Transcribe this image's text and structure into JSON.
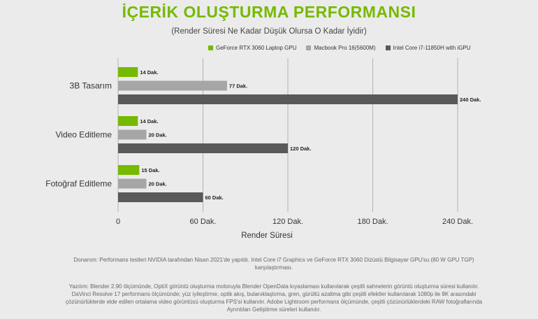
{
  "title": "İÇERİK OLUŞTURMA PERFORMANSI",
  "subtitle": "(Render Süresi Ne Kadar Düşük Olursa O Kadar İyidir)",
  "colors": {
    "green": "#76b900",
    "light_gray": "#a6a6a6",
    "dark_gray": "#595959",
    "title": "#76b900"
  },
  "chart_data": {
    "type": "bar",
    "orientation": "horizontal",
    "title": "İÇERİK OLUŞTURMA PERFORMANSI",
    "subtitle": "(Render Süresi Ne Kadar Düşük Olursa O Kadar İyidir)",
    "xlabel": "Render Süresi",
    "ylabel": "",
    "xlim": [
      0,
      240
    ],
    "xticks": [
      0,
      60,
      120,
      180,
      240
    ],
    "xtick_labels": [
      "0",
      "60 Dak.",
      "120 Dak.",
      "180 Dak.",
      "240 Dak."
    ],
    "grid": "vertical",
    "legend_position": "top-right",
    "categories": [
      "3B Tasarım",
      "Video Editleme",
      "Fotoğraf Editleme"
    ],
    "series": [
      {
        "name": "GeForce RTX 3060 Laptop GPU",
        "color": "#76b900",
        "values": [
          14,
          14,
          15
        ],
        "labels": [
          "14 Dak.",
          "14 Dak.",
          "15 Dak."
        ]
      },
      {
        "name": "Macbook Pro 16(5600M)",
        "color": "#a6a6a6",
        "values": [
          77,
          20,
          20
        ],
        "labels": [
          "77 Dak.",
          "20 Dak.",
          "20 Dak."
        ]
      },
      {
        "name": "Intel Core i7-11850H with iGPU",
        "color": "#595959",
        "values": [
          240,
          120,
          60
        ],
        "labels": [
          "240 Dak.",
          "120 Dak.",
          "60 Dak."
        ]
      }
    ]
  },
  "notes": {
    "hardware": "Donanım:  Performans testleri NVIDIA tarafından Nisan 2021'de yapıldı.  Intel Core i7 Graphics ve GeForce RTX 3060 Dizüstü Bilgisayar GPU'su (80 W GPU TGP) karşılaştırması.",
    "software": "Yazılım: Blender 2.90 ölçümünde, OptiX görüntü oluşturma motoruyla Blender OpenData kıyaslaması kullanılarak çeşitli sahnelerin görüntü oluşturma süresi kullanılır.  DaVinci Resolve 17 performans ölçümünde; yüz iyileştirme, optik akış, bulanıklaştırma, gren, gürültü azaltma gibi çeşitli efektler kullanılarak 1080p ile 8K arasındaki çözünürlüklerde elde edilen ortalama video görüntüsü oluşturma FPS'si kullanılır.  Adobe Lightroom performans ölçümünde, çeşitli çözünürlüklerdeki RAW fotoğraflarında Ayrıntıları Geliştirme süreleri kullanılır."
  }
}
